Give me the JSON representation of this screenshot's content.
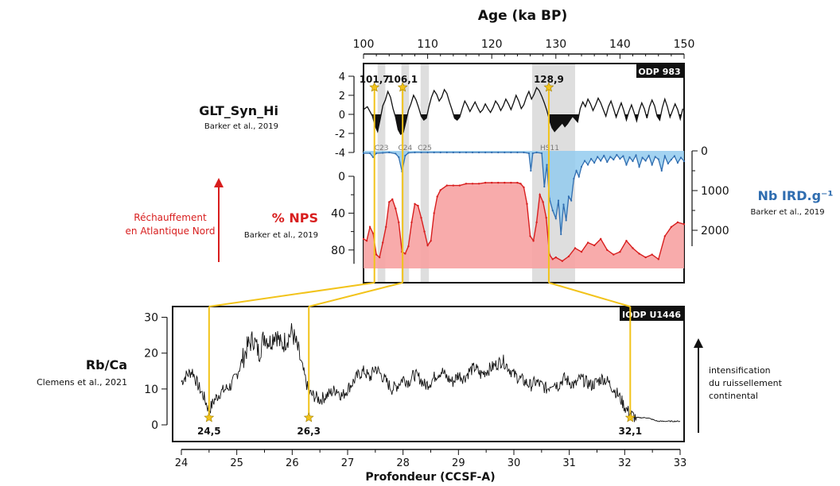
{
  "colors": {
    "red": "#d81e1e",
    "blue": "#2f6db0",
    "gold": "#f2c31a",
    "fill_red": "#f7a2a2",
    "fill_blue": "#93cbee",
    "black": "#111111"
  },
  "chart_data": [
    {
      "type": "line",
      "name": "top-panel",
      "title": "Age (ka BP)",
      "xlabel": "Age (ka BP)",
      "xlim": [
        100,
        150
      ],
      "xticks": [
        100,
        110,
        120,
        130,
        140,
        150
      ],
      "box_label": "ODP 983",
      "series": [
        {
          "name": "GLT_Syn_Hi",
          "source": "Barker et al., 2019",
          "ylim": [
            -4,
            4
          ],
          "yticks": [
            4,
            2,
            0,
            -2,
            -4
          ],
          "x": [
            100,
            100.6,
            101,
            101.4,
            101.8,
            102.2,
            102.6,
            103,
            103.4,
            103.8,
            104.2,
            104.6,
            105,
            105.4,
            105.8,
            106.2,
            106.6,
            107,
            107.4,
            107.8,
            108.2,
            108.6,
            109,
            109.4,
            109.8,
            110.2,
            110.6,
            111,
            111.4,
            111.8,
            112.2,
            112.6,
            113,
            113.4,
            113.8,
            114.2,
            114.6,
            115,
            115.4,
            115.8,
            116.2,
            116.6,
            117,
            117.4,
            117.8,
            118.2,
            118.6,
            119,
            119.4,
            119.8,
            120.2,
            120.6,
            121,
            121.4,
            121.8,
            122.2,
            122.6,
            123,
            123.4,
            123.8,
            124.2,
            124.6,
            125,
            125.4,
            125.8,
            126.2,
            126.6,
            127,
            127.4,
            127.8,
            128.2,
            128.6,
            129,
            129.4,
            129.8,
            130.2,
            130.6,
            131,
            131.4,
            131.8,
            132.2,
            132.6,
            133,
            133.4,
            133.8,
            134.2,
            134.6,
            135,
            135.4,
            135.8,
            136.2,
            136.6,
            137,
            137.4,
            137.8,
            138.2,
            138.6,
            139,
            139.4,
            139.8,
            140.2,
            140.6,
            141,
            141.4,
            141.8,
            142.2,
            142.6,
            143,
            143.4,
            143.8,
            144.2,
            144.6,
            145,
            145.4,
            145.8,
            146.2,
            146.6,
            147,
            147.4,
            147.8,
            148.2,
            148.6,
            149,
            149.4,
            149.8
          ],
          "y": [
            0.5,
            0.8,
            0.3,
            -0.2,
            -1.2,
            -1.8,
            -0.5,
            0.9,
            1.5,
            2.4,
            1.8,
            0.6,
            -0.3,
            -1.6,
            -2.1,
            -1.9,
            -0.8,
            0.4,
            1.1,
            2.0,
            1.5,
            0.7,
            -0.2,
            -0.6,
            -0.4,
            0.8,
            1.8,
            2.5,
            2.1,
            1.4,
            1.8,
            2.6,
            2.2,
            1.3,
            0.5,
            -0.4,
            -0.6,
            -0.3,
            0.6,
            1.4,
            0.9,
            0.3,
            0.8,
            1.3,
            0.7,
            0.2,
            0.5,
            1.1,
            0.6,
            0.2,
            0.7,
            1.4,
            1.0,
            0.4,
            0.9,
            1.6,
            1.1,
            0.5,
            1.2,
            2.0,
            1.4,
            0.6,
            1.0,
            1.8,
            2.4,
            1.6,
            2.1,
            2.8,
            2.5,
            1.9,
            1.2,
            0.4,
            -0.6,
            -1.4,
            -1.8,
            -1.5,
            -1.2,
            -0.9,
            -1.3,
            -1.0,
            -0.6,
            -0.2,
            -0.5,
            -0.8,
            0.6,
            1.3,
            0.8,
            1.6,
            1.1,
            0.4,
            1.0,
            1.7,
            1.2,
            0.5,
            -0.2,
            0.8,
            1.4,
            0.6,
            -0.3,
            0.5,
            1.2,
            0.4,
            -0.6,
            0.3,
            1.0,
            0.2,
            -0.7,
            0.4,
            1.2,
            0.6,
            -0.4,
            0.8,
            1.5,
            0.9,
            -0.2,
            -0.6,
            0.7,
            1.6,
            0.8,
            -0.3,
            0.4,
            1.1,
            0.5,
            -0.5,
            0.6
          ]
        },
        {
          "name": "Nb IRD.g⁻¹",
          "source": "Barker et al., 2019",
          "ylim": [
            0,
            2600
          ],
          "yticks": [
            0,
            1000,
            2000
          ],
          "x": [
            100,
            101,
            101.5,
            102,
            103,
            104,
            105,
            105.5,
            106,
            106.5,
            107,
            108,
            109,
            110,
            111,
            112,
            113,
            114,
            115,
            116,
            117,
            118,
            119,
            120,
            121,
            122,
            123,
            124,
            125,
            125.8,
            126.1,
            126.4,
            127,
            127.8,
            128.2,
            128.6,
            129,
            129.5,
            130,
            130.4,
            130.8,
            131.2,
            131.6,
            132,
            132.4,
            132.8,
            133.2,
            133.6,
            134,
            134.5,
            135,
            135.5,
            136,
            136.5,
            137,
            137.5,
            138,
            138.5,
            139,
            139.5,
            140,
            140.5,
            141,
            141.5,
            142,
            142.5,
            143,
            143.5,
            144,
            144.5,
            145,
            145.5,
            146,
            146.5,
            147,
            147.5,
            148,
            148.5,
            149,
            149.5,
            150
          ],
          "y": [
            60,
            60,
            160,
            60,
            50,
            40,
            70,
            160,
            520,
            120,
            50,
            40,
            40,
            40,
            40,
            40,
            40,
            40,
            40,
            40,
            40,
            40,
            40,
            40,
            40,
            40,
            40,
            40,
            40,
            60,
            500,
            60,
            40,
            60,
            900,
            350,
            1200,
            1500,
            1700,
            1250,
            2100,
            1350,
            1750,
            1150,
            1250,
            700,
            500,
            650,
            400,
            250,
            350,
            200,
            300,
            150,
            250,
            120,
            280,
            150,
            220,
            100,
            200,
            130,
            350,
            160,
            260,
            110,
            400,
            170,
            250,
            120,
            350,
            150,
            210,
            500,
            130,
            320,
            220,
            130,
            300,
            170,
            260
          ]
        },
        {
          "name": "% NPS",
          "source": "Barker et al., 2019",
          "ylim": [
            0,
            100
          ],
          "yticks": [
            0,
            40,
            80
          ],
          "x": [
            100,
            100.5,
            101,
            101.5,
            102,
            102.5,
            103,
            103.5,
            104,
            104.5,
            105,
            105.5,
            106,
            106.5,
            107,
            107.5,
            108,
            108.5,
            109,
            109.5,
            110,
            110.5,
            111,
            111.5,
            112,
            113,
            114,
            115,
            116,
            117,
            118,
            119,
            120,
            121,
            122,
            123,
            124,
            124.5,
            125,
            125.5,
            126,
            126.5,
            127,
            127.5,
            128,
            128.5,
            129,
            129.5,
            130,
            131,
            132,
            133,
            134,
            135,
            136,
            137,
            138,
            139,
            140,
            141,
            142,
            143,
            144,
            145,
            146,
            147,
            148,
            149,
            150
          ],
          "y": [
            68,
            70,
            55,
            62,
            85,
            88,
            72,
            55,
            28,
            25,
            35,
            50,
            82,
            84,
            76,
            50,
            30,
            32,
            45,
            60,
            75,
            70,
            40,
            22,
            15,
            10,
            10,
            10,
            8,
            8,
            8,
            7,
            7,
            7,
            7,
            7,
            7,
            8,
            12,
            30,
            65,
            70,
            50,
            20,
            28,
            45,
            85,
            90,
            88,
            92,
            87,
            78,
            82,
            72,
            75,
            68,
            80,
            85,
            82,
            70,
            78,
            84,
            88,
            85,
            90,
            65,
            55,
            50,
            52
          ]
        },
        {
          "name": "HS-bands",
          "ranges": [
            [
              102.2,
              103.4
            ],
            [
              105.9,
              107.1
            ],
            [
              108.9,
              110.2
            ],
            [
              126.3,
              133.0
            ]
          ],
          "labels": [
            "C23",
            "C24",
            "C25",
            "HS11"
          ]
        }
      ],
      "annotations": [
        "101,7",
        "106,1",
        "128,9"
      ],
      "left_note": "Réchauffement en Atlantique Nord"
    },
    {
      "type": "line",
      "name": "bottom-panel",
      "xlabel": "Profondeur (CCSF-A)",
      "xlim": [
        24,
        33
      ],
      "xticks": [
        24,
        25,
        26,
        27,
        28,
        29,
        30,
        31,
        32,
        33
      ],
      "box_label": "IODP U1446",
      "series": [
        {
          "name": "Rb/Ca",
          "source": "Clemens et al., 2021",
          "ylim": [
            0,
            31
          ],
          "yticks": [
            0,
            10,
            20,
            30
          ],
          "x": [
            24,
            24.1,
            24.2,
            24.3,
            24.4,
            24.5,
            24.6,
            24.7,
            24.8,
            24.9,
            25,
            25.1,
            25.2,
            25.3,
            25.4,
            25.5,
            25.6,
            25.7,
            25.8,
            25.9,
            26,
            26.1,
            26.2,
            26.3,
            26.4,
            26.5,
            26.6,
            26.7,
            26.8,
            26.9,
            27,
            27.1,
            27.2,
            27.3,
            27.4,
            27.5,
            27.6,
            27.7,
            27.8,
            27.9,
            28,
            28.1,
            28.2,
            28.3,
            28.4,
            28.5,
            28.6,
            28.7,
            28.8,
            28.9,
            29,
            29.1,
            29.2,
            29.3,
            29.4,
            29.5,
            29.6,
            29.7,
            29.8,
            29.9,
            30,
            30.1,
            30.2,
            30.3,
            30.4,
            30.5,
            30.6,
            30.7,
            30.8,
            30.9,
            31,
            31.1,
            31.2,
            31.3,
            31.4,
            31.5,
            31.6,
            31.7,
            31.8,
            31.9,
            32,
            32.1,
            32.2,
            32.3,
            32.4,
            32.5,
            32.6,
            32.7,
            32.8,
            32.9,
            33
          ],
          "y": [
            12,
            14,
            15,
            11,
            8,
            4,
            7,
            9,
            10,
            11,
            14,
            18,
            22,
            24,
            20,
            25,
            23,
            26,
            22,
            24,
            26,
            21,
            15,
            9,
            8,
            7,
            8,
            9,
            10,
            8,
            10,
            12,
            14,
            15,
            13,
            16,
            14,
            12,
            10,
            11,
            13,
            12,
            14,
            13,
            11,
            12,
            14,
            15,
            13,
            12,
            14,
            13,
            15,
            16,
            14,
            15,
            16,
            17,
            18,
            16,
            14,
            13,
            12,
            11,
            12,
            11,
            10,
            12,
            11,
            13,
            12,
            11,
            13,
            12,
            11,
            12,
            13,
            12,
            10,
            8,
            5,
            3,
            2,
            2,
            2,
            1.5,
            1,
            1,
            1,
            1,
            1
          ]
        }
      ],
      "annotations": [
        "24,5",
        "26,3",
        "32,1"
      ],
      "right_note": "intensification du ruissellement continental"
    }
  ],
  "links": [
    {
      "top_age": 101.7,
      "bottom_depth": 24.5
    },
    {
      "top_age": 106.1,
      "bottom_depth": 26.3
    },
    {
      "top_age": 128.9,
      "bottom_depth": 32.1
    }
  ]
}
